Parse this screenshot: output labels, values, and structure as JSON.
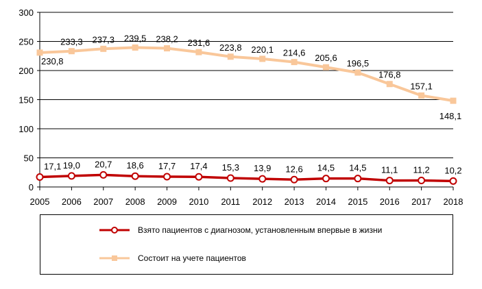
{
  "chart_data": {
    "type": "line",
    "x": [
      "2005",
      "2006",
      "2007",
      "2008",
      "2009",
      "2010",
      "2011",
      "2012",
      "2013",
      "2014",
      "2015",
      "2016",
      "2017",
      "2018"
    ],
    "ylim": [
      0,
      300
    ],
    "yticks": [
      0,
      50,
      100,
      150,
      200,
      250,
      300
    ],
    "grid": true,
    "legend_position": "bottom",
    "series": [
      {
        "name": "Состоит на учете пациентов",
        "color": "#f9c79a",
        "marker": "square",
        "values": [
          230.8,
          233.3,
          237.3,
          239.5,
          238.2,
          231.6,
          223.8,
          220.1,
          214.6,
          205.6,
          196.5,
          176.8,
          157.1,
          148.1
        ],
        "labels": [
          "230,8",
          "233,3",
          "237,3",
          "239,5",
          "238,2",
          "231,6",
          "223,8",
          "220,1",
          "214,6",
          "205,6",
          "196,5",
          "176,8",
          "157,1",
          "148,1"
        ]
      },
      {
        "name": "Взято пациентов с диагнозом, установленным впервые в жизни",
        "color": "#c00000",
        "marker": "circle",
        "values": [
          17.1,
          19.0,
          20.7,
          18.6,
          17.7,
          17.4,
          15.3,
          13.9,
          12.6,
          14.5,
          14.5,
          11.1,
          11.2,
          10.2
        ],
        "labels": [
          "17,1",
          "19,0",
          "20,7",
          "18,6",
          "17,7",
          "17,4",
          "15,3",
          "13,9",
          "12,6",
          "14,5",
          "14,5",
          "11,1",
          "11,2",
          "10,2"
        ]
      }
    ]
  },
  "legend": {
    "item1": "Взято пациентов с диагнозом, установленным впервые в жизни",
    "item2": "Состоит на учете пациентов"
  }
}
